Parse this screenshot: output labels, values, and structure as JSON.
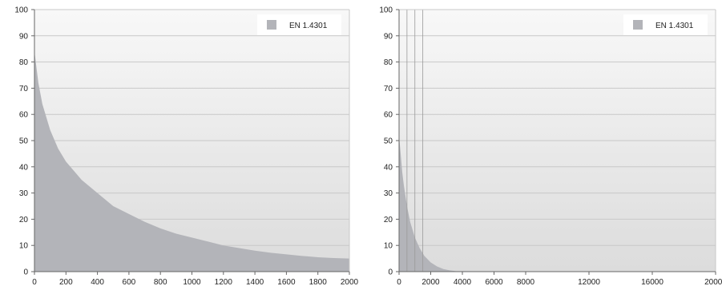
{
  "chart_data": [
    {
      "type": "area",
      "legend": [
        "EN 1.4301"
      ],
      "legend_position": "top-right",
      "grid": true,
      "xlim": [
        0,
        2000
      ],
      "ylim": [
        0,
        100
      ],
      "x_ticks": [
        0,
        200,
        400,
        600,
        800,
        1000,
        1200,
        1400,
        1600,
        1800,
        2000
      ],
      "y_ticks": [
        0,
        10,
        20,
        30,
        40,
        50,
        60,
        70,
        80,
        90,
        100
      ],
      "series": [
        {
          "name": "EN 1.4301",
          "x": [
            0,
            25,
            50,
            100,
            150,
            200,
            300,
            400,
            500,
            600,
            700,
            800,
            900,
            1000,
            1100,
            1200,
            1300,
            1400,
            1500,
            1600,
            1700,
            1800,
            1900,
            2000
          ],
          "y": [
            84,
            72,
            64,
            54,
            47,
            42,
            35,
            30,
            25,
            22,
            19,
            16.5,
            14.5,
            13,
            11.5,
            10,
            9,
            8,
            7.2,
            6.6,
            6,
            5.5,
            5.2,
            5
          ]
        }
      ],
      "colors": {
        "fill": "#b3b4b9",
        "grid": "#c8c8c8",
        "bg_top": "#f8f8f8",
        "bg_bottom": "#dcdcdc",
        "axis": "#666666"
      }
    },
    {
      "type": "area",
      "legend": [
        "EN 1.4301"
      ],
      "legend_position": "top-right",
      "grid": true,
      "xlim": [
        0,
        20000
      ],
      "ylim": [
        0,
        100
      ],
      "x_ticks": [
        0,
        2000,
        4000,
        6000,
        8000,
        12000,
        16000,
        20000
      ],
      "y_ticks": [
        0,
        10,
        20,
        30,
        40,
        50,
        60,
        70,
        80,
        90,
        100
      ],
      "vertical_lines": [
        500,
        1000,
        1500
      ],
      "series": [
        {
          "name": "EN 1.4301",
          "x": [
            0,
            100,
            200,
            300,
            500,
            700,
            1000,
            1300,
            1600,
            2000,
            2400,
            2800,
            3200,
            3600,
            20000
          ],
          "y": [
            52,
            45,
            38,
            33,
            25,
            19,
            13,
            9,
            6,
            3.5,
            2,
            1,
            0.5,
            0.2,
            0
          ],
          "stroke": false
        }
      ],
      "colors": {
        "fill": "#b3b4b9",
        "grid": "#c8c8c8",
        "bg_top": "#f8f8f8",
        "bg_bottom": "#dcdcdc",
        "axis": "#666666"
      }
    }
  ]
}
